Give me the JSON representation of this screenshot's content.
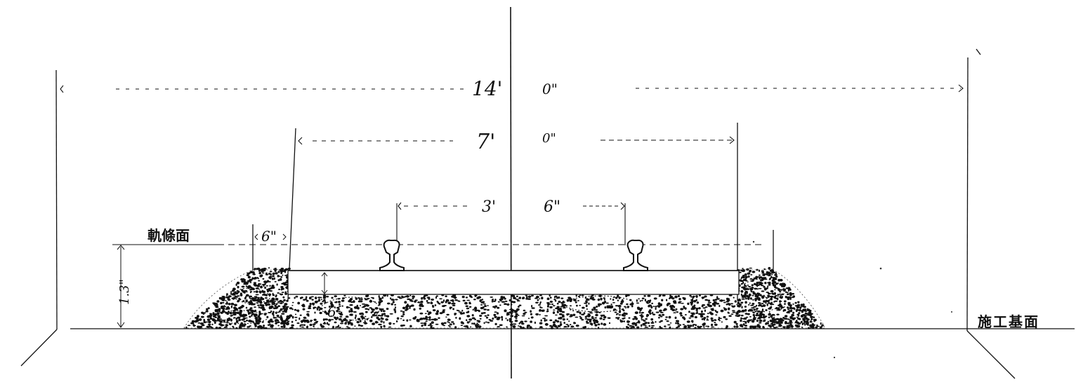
{
  "diagram": {
    "dimensions": {
      "outer_feet": "14'",
      "outer_inches": "0\"",
      "sleeper_feet": "7'",
      "sleeper_inches": "0\"",
      "gauge_feet": "3'",
      "gauge_inches": "6\"",
      "shoulder": "6\"",
      "ballast_depth": "1.3\"",
      "ballast_under_sleeper": "6"
    },
    "labels": {
      "rail_level": "軌條面",
      "formation_level": "施工基面"
    },
    "colors": {
      "ink": "#111111",
      "paper": "#ffffff"
    }
  }
}
